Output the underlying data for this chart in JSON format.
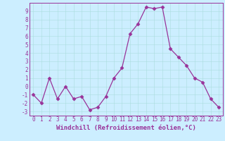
{
  "x": [
    0,
    1,
    2,
    3,
    4,
    5,
    6,
    7,
    8,
    9,
    10,
    11,
    12,
    13,
    14,
    15,
    16,
    17,
    18,
    19,
    20,
    21,
    22,
    23
  ],
  "y": [
    -1,
    -2,
    1,
    -1.5,
    0,
    -1.5,
    -1.2,
    -2.8,
    -2.5,
    -1.2,
    1,
    2.2,
    6.3,
    7.5,
    9.5,
    9.3,
    9.5,
    4.5,
    3.5,
    2.5,
    1,
    0.5,
    -1.5,
    -2.5
  ],
  "line_color": "#993399",
  "marker": "D",
  "marker_size": 2.5,
  "bg_color": "#cceeff",
  "grid_color": "#aadddd",
  "xlabel": "Windchill (Refroidissement éolien,°C)",
  "xlim": [
    -0.5,
    23.5
  ],
  "ylim": [
    -3.5,
    10.0
  ],
  "yticks": [
    -3,
    -2,
    -1,
    0,
    1,
    2,
    3,
    4,
    5,
    6,
    7,
    8,
    9
  ],
  "xticks": [
    0,
    1,
    2,
    3,
    4,
    5,
    6,
    7,
    8,
    9,
    10,
    11,
    12,
    13,
    14,
    15,
    16,
    17,
    18,
    19,
    20,
    21,
    22,
    23
  ],
  "tick_label_size": 5.5,
  "xlabel_size": 6.5,
  "axis_color": "#993399",
  "tick_color": "#993399",
  "spine_color": "#993399"
}
